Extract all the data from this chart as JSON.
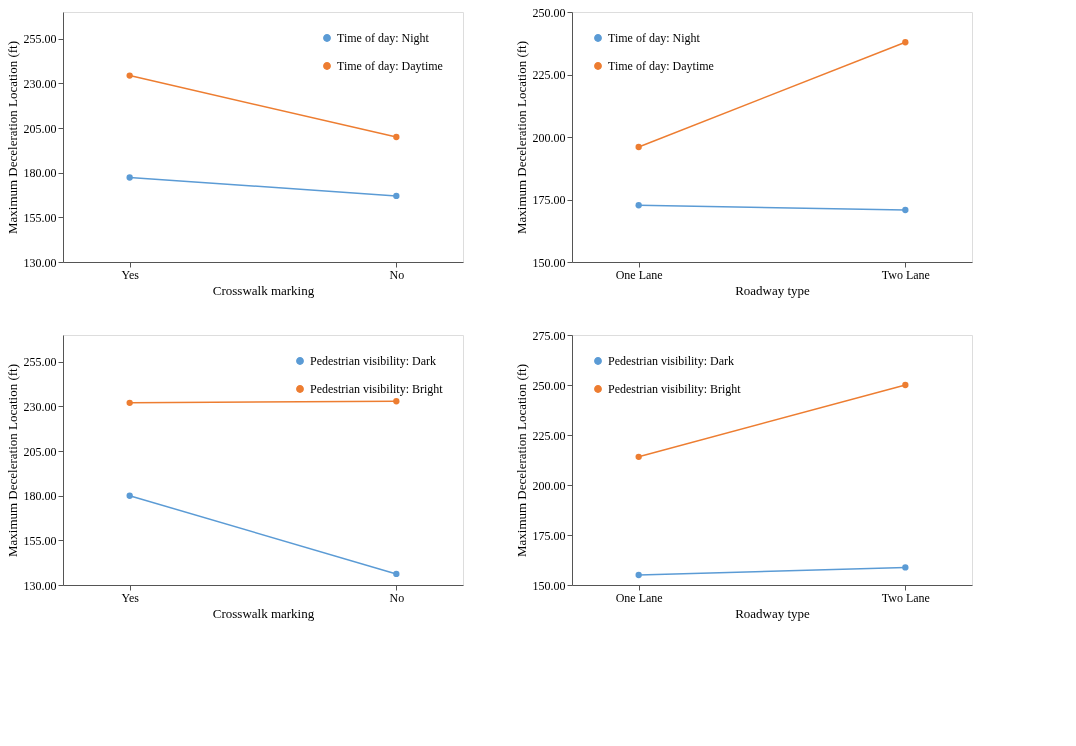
{
  "chart_data": [
    {
      "type": "line",
      "xlabel": "Crosswalk marking",
      "ylabel": "Maximum Deceleration Location (ft)",
      "categories": [
        "Yes",
        "No"
      ],
      "ylim": [
        130,
        270
      ],
      "yticks": [
        {
          "value": 130,
          "label": "130.00"
        },
        {
          "value": 155,
          "label": "155.00"
        },
        {
          "value": 180,
          "label": "180.00"
        },
        {
          "value": 205,
          "label": "205.00"
        },
        {
          "value": 230,
          "label": "230.00"
        },
        {
          "value": 255,
          "label": "255.00"
        }
      ],
      "legend": "top right",
      "marker": "circle",
      "series": [
        {
          "name": "Time of day: Night",
          "color": "#5b9bd5",
          "values": [
            177.3,
            167
          ]
        },
        {
          "name": "Time of day: Daytime",
          "color": "#ed7d31",
          "values": [
            234.4,
            200
          ]
        }
      ]
    },
    {
      "type": "line",
      "xlabel": "Roadway type",
      "ylabel": "Maximum Deceleration Location (ft)",
      "categories": [
        "One Lane",
        "Two Lane"
      ],
      "ylim": [
        150,
        250
      ],
      "yticks": [
        {
          "value": 150,
          "label": "150.00"
        },
        {
          "value": 175,
          "label": "175.00"
        },
        {
          "value": 200,
          "label": "200.00"
        },
        {
          "value": 225,
          "label": "225.00"
        },
        {
          "value": 250,
          "label": "250.00"
        }
      ],
      "legend": "top left",
      "marker": "circle",
      "series": [
        {
          "name": "Time of day: Night",
          "color": "#5b9bd5",
          "values": [
            172.7,
            170.8
          ]
        },
        {
          "name": "Time of day: Daytime",
          "color": "#ed7d31",
          "values": [
            196,
            237.9
          ]
        }
      ]
    },
    {
      "type": "line",
      "xlabel": "Crosswalk marking",
      "ylabel": "Maximum Deceleration Location (ft)",
      "categories": [
        "Yes",
        "No"
      ],
      "ylim": [
        130,
        270
      ],
      "yticks": [
        {
          "value": 130,
          "label": "130.00"
        },
        {
          "value": 155,
          "label": "155.00"
        },
        {
          "value": 180,
          "label": "180.00"
        },
        {
          "value": 205,
          "label": "205.00"
        },
        {
          "value": 230,
          "label": "230.00"
        },
        {
          "value": 255,
          "label": "255.00"
        }
      ],
      "legend": "top right",
      "marker": "circle",
      "series": [
        {
          "name": "Pedestrian visibility: Dark",
          "color": "#5b9bd5",
          "values": [
            180,
            136.2
          ]
        },
        {
          "name": "Pedestrian visibility: Bright",
          "color": "#ed7d31",
          "values": [
            232,
            232.9
          ]
        }
      ]
    },
    {
      "type": "line",
      "xlabel": "Roadway type",
      "ylabel": "Maximum Deceleration Location (ft)",
      "categories": [
        "One Lane",
        "Two Lane"
      ],
      "ylim": [
        150,
        275
      ],
      "yticks": [
        {
          "value": 150,
          "label": "150.00"
        },
        {
          "value": 175,
          "label": "175.00"
        },
        {
          "value": 200,
          "label": "200.00"
        },
        {
          "value": 225,
          "label": "225.00"
        },
        {
          "value": 250,
          "label": "250.00"
        },
        {
          "value": 275,
          "label": "275.00"
        }
      ],
      "legend": "top left",
      "marker": "circle",
      "series": [
        {
          "name": "Pedestrian visibility: Dark",
          "color": "#5b9bd5",
          "values": [
            155,
            158.8
          ]
        },
        {
          "name": "Pedestrian visibility: Bright",
          "color": "#ed7d31",
          "values": [
            214.1,
            250
          ]
        }
      ]
    }
  ]
}
